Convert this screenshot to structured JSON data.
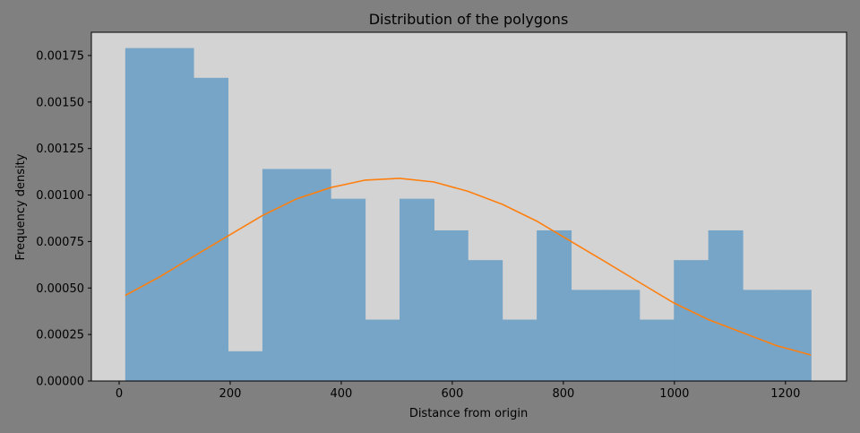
{
  "chart_data": {
    "type": "bar",
    "title": "Distribution of the polygons",
    "xlabel": "Distance from origin",
    "ylabel": "Frequency density",
    "xlim": [
      -50,
      1310
    ],
    "ylim": [
      0,
      0.001875
    ],
    "xticks": [
      0,
      200,
      400,
      600,
      800,
      1000,
      1200
    ],
    "yticks": [
      0,
      0.00025,
      0.0005,
      0.00075,
      0.001,
      0.00125,
      0.0015,
      0.00175
    ],
    "ytick_labels": [
      "0.00000",
      "0.00025",
      "0.00050",
      "0.00075",
      "0.00100",
      "0.00125",
      "0.00150",
      "0.00175"
    ],
    "grid": false,
    "bins": {
      "edges": [
        11,
        73,
        134,
        196,
        258,
        320,
        381,
        443,
        505,
        567,
        628,
        690,
        752,
        814,
        876,
        937,
        999,
        1061,
        1123,
        1184,
        1246
      ],
      "values": [
        0.00179,
        0.00179,
        0.00163,
        0.00016,
        0.00114,
        0.00114,
        0.00098,
        0.00033,
        0.00098,
        0.00081,
        0.00065,
        0.00033,
        0.00081,
        0.00049,
        0.00049,
        0.00033,
        0.00065,
        0.00081,
        0.00049,
        0.00049
      ]
    },
    "series": [
      {
        "type": "line",
        "x": [
          11,
          73,
          134,
          196,
          258,
          320,
          381,
          443,
          505,
          567,
          628,
          690,
          752,
          814,
          876,
          937,
          999,
          1061,
          1123,
          1184,
          1246
        ],
        "values": [
          0.00046,
          0.00056,
          0.00067,
          0.00078,
          0.00089,
          0.00098,
          0.00104,
          0.00108,
          0.00109,
          0.00107,
          0.00102,
          0.00095,
          0.00086,
          0.00075,
          0.00064,
          0.00053,
          0.00042,
          0.00033,
          0.00026,
          0.00019,
          0.00014
        ]
      }
    ],
    "colors": {
      "background": "#808080",
      "plot_area": "#d3d3d3",
      "bars": "#77a5c7",
      "line": "#ff7f0e"
    }
  }
}
